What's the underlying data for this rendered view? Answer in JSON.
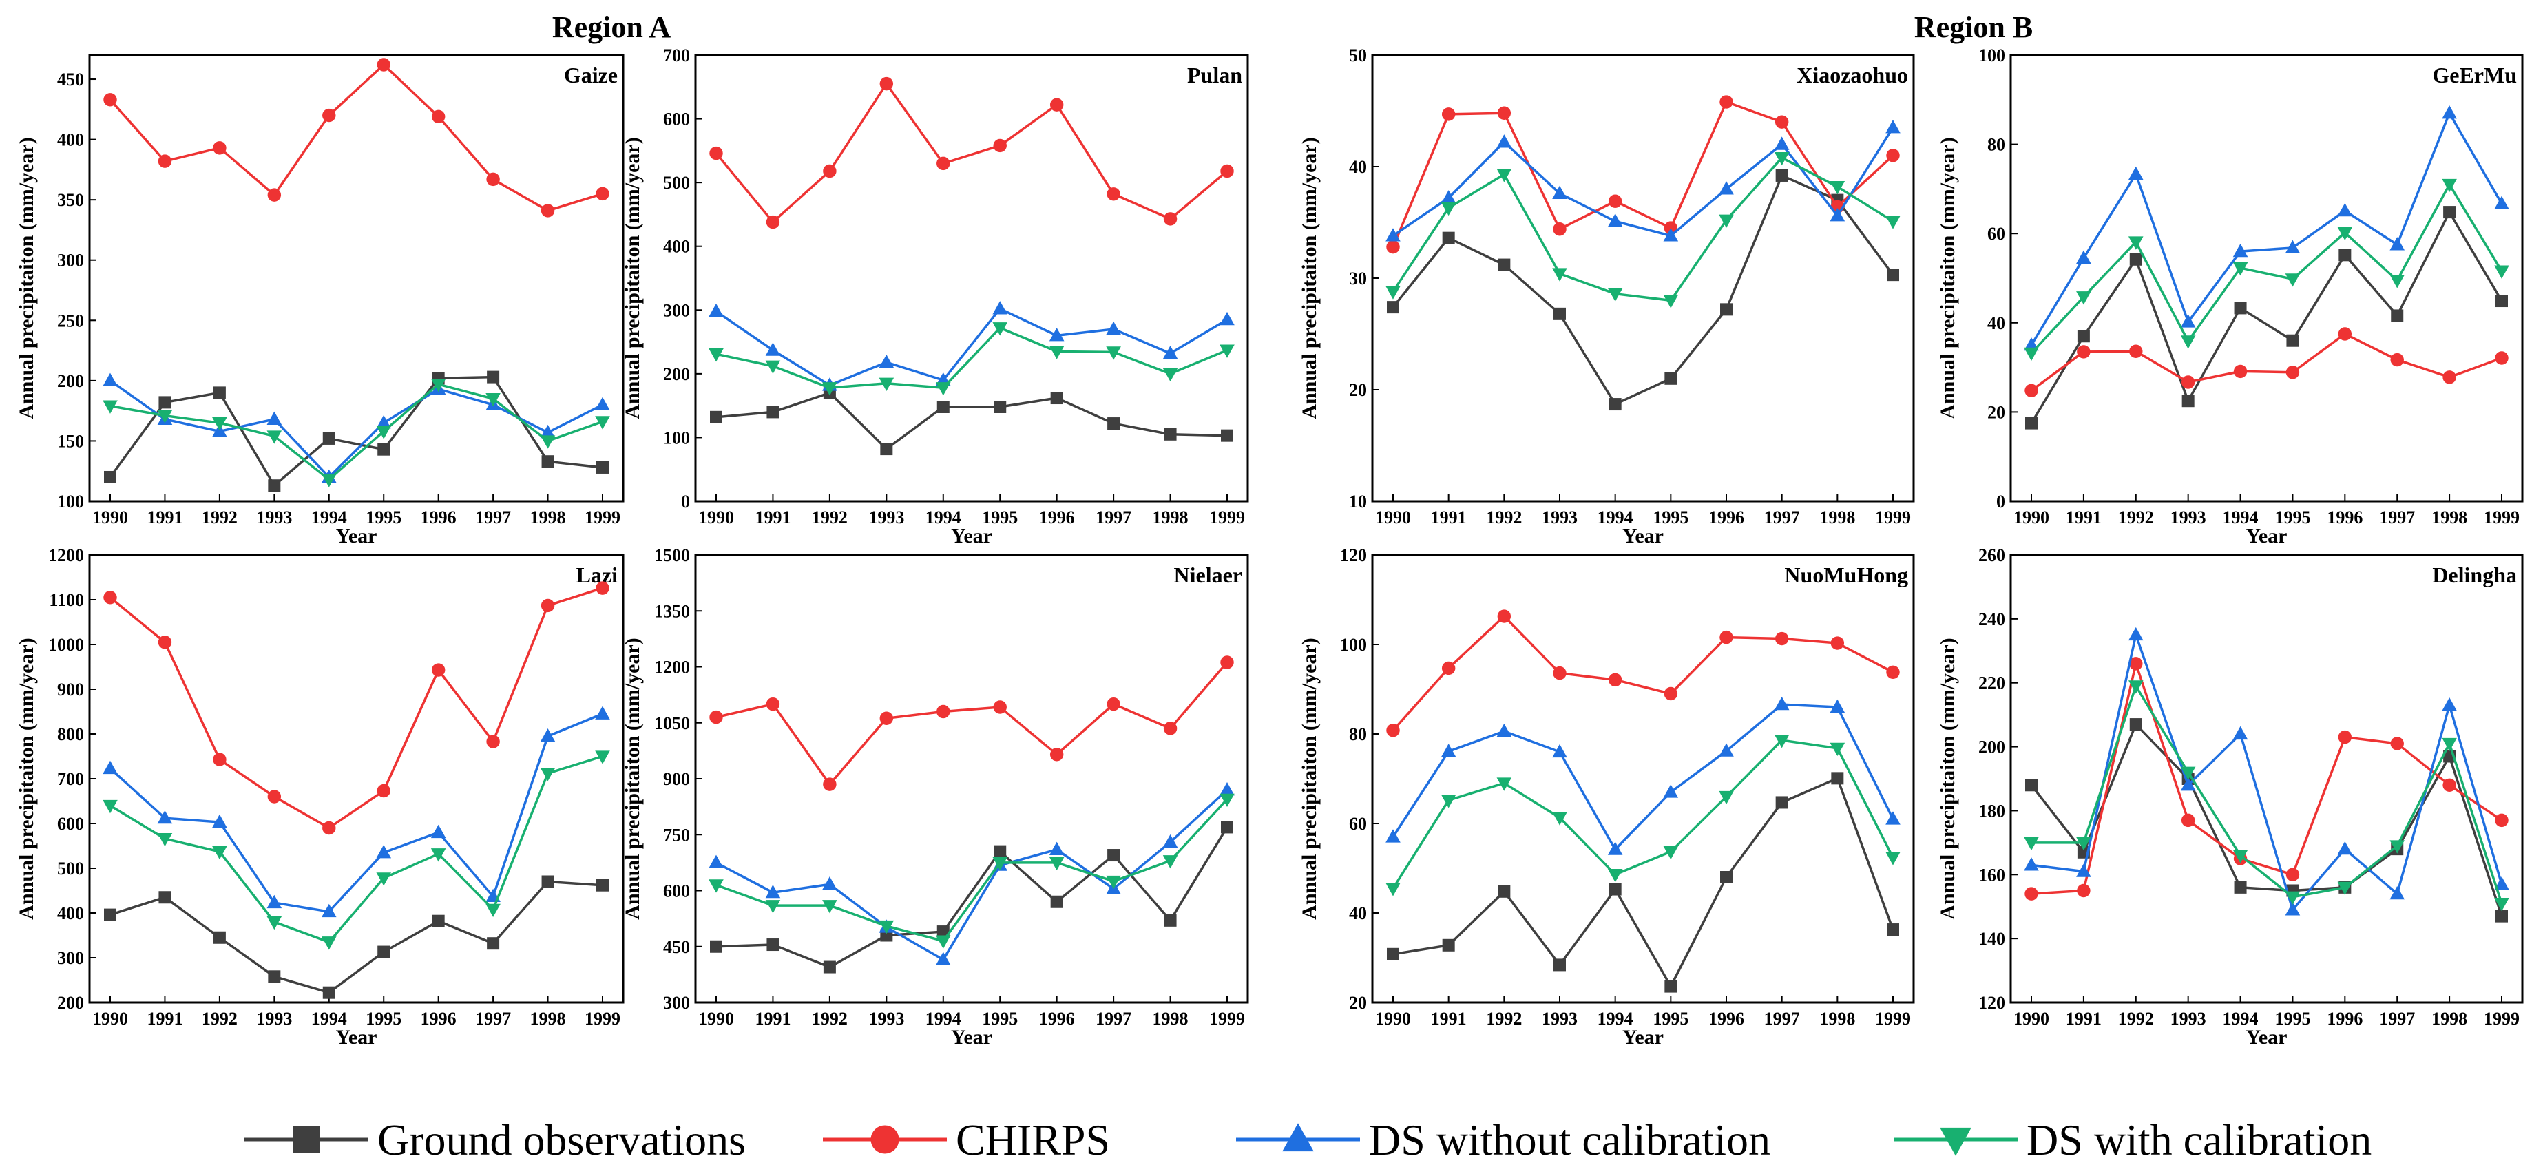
{
  "region_titles": [
    "Region A",
    "Region B"
  ],
  "legend": {
    "items": [
      {
        "label": "Ground observations",
        "marker": "square",
        "color": "#3f3f3f"
      },
      {
        "label": "CHIRPS",
        "marker": "circle",
        "color": "#ee3333"
      },
      {
        "label": "DS without calibration",
        "marker": "triangle-up",
        "color": "#1f6fe0"
      },
      {
        "label": "DS with calibration",
        "marker": "triangle-down",
        "color": "#18b070"
      }
    ]
  },
  "chart_data": [
    {
      "type": "line",
      "title": "Gaize",
      "region": "Region A",
      "xlabel": "Year",
      "ylabel": "Annual precipitaiton (mm/year)",
      "categories": [
        "1990",
        "1991",
        "1992",
        "1993",
        "1994",
        "1995",
        "1996",
        "1997",
        "1998",
        "1999"
      ],
      "ylim": [
        100,
        470
      ],
      "yticks": [
        100,
        150,
        200,
        250,
        300,
        350,
        400,
        450
      ],
      "series": [
        {
          "name": "Ground observations",
          "values": [
            120,
            182,
            190,
            113,
            152,
            143,
            202,
            203,
            133,
            128
          ]
        },
        {
          "name": "CHIRPS",
          "values": [
            433,
            382,
            393,
            354,
            420,
            462,
            419,
            367,
            341,
            355
          ]
        },
        {
          "name": "DS without calibration",
          "values": [
            200,
            168,
            158,
            168,
            120,
            165,
            193,
            180,
            157,
            180
          ]
        },
        {
          "name": "DS with calibration",
          "values": [
            179,
            171,
            165,
            154,
            118,
            158,
            197,
            185,
            150,
            166
          ]
        }
      ]
    },
    {
      "type": "line",
      "title": "Pulan",
      "region": "Region A",
      "xlabel": "Year",
      "ylabel": "Annual precipitaiton (mm/year)",
      "categories": [
        "1990",
        "1991",
        "1992",
        "1993",
        "1994",
        "1995",
        "1996",
        "1997",
        "1998",
        "1999"
      ],
      "ylim": [
        0,
        700
      ],
      "yticks": [
        0,
        100,
        200,
        300,
        400,
        500,
        600,
        700
      ],
      "series": [
        {
          "name": "Ground observations",
          "values": [
            132,
            140,
            170,
            82,
            148,
            148,
            162,
            122,
            105,
            103
          ]
        },
        {
          "name": "CHIRPS",
          "values": [
            546,
            438,
            518,
            655,
            530,
            558,
            622,
            482,
            443,
            518
          ]
        },
        {
          "name": "DS without calibration",
          "values": [
            298,
            237,
            182,
            218,
            190,
            302,
            260,
            270,
            232,
            285
          ]
        },
        {
          "name": "DS with calibration",
          "values": [
            231,
            212,
            178,
            185,
            178,
            272,
            235,
            234,
            200,
            237
          ]
        }
      ]
    },
    {
      "type": "line",
      "title": "Xiaozaohuo",
      "region": "Region B",
      "xlabel": "Year",
      "ylabel": "Annual precipitaiton (mm/year)",
      "categories": [
        "1990",
        "1991",
        "1992",
        "1993",
        "1994",
        "1995",
        "1996",
        "1997",
        "1998",
        "1999"
      ],
      "ylim": [
        10,
        50
      ],
      "yticks": [
        10,
        20,
        30,
        40,
        50
      ],
      "series": [
        {
          "name": "Ground observations",
          "values": [
            27.4,
            33.6,
            31.2,
            26.8,
            18.7,
            21.0,
            27.2,
            39.2,
            37.0,
            30.3
          ]
        },
        {
          "name": "CHIRPS",
          "values": [
            32.8,
            44.7,
            44.8,
            34.4,
            36.9,
            34.5,
            45.8,
            44.0,
            36.4,
            41.0
          ]
        },
        {
          "name": "DS without calibration",
          "values": [
            33.8,
            37.2,
            42.2,
            37.6,
            35.1,
            33.8,
            38.0,
            42.0,
            35.6,
            43.5
          ]
        },
        {
          "name": "DS with calibration",
          "values": [
            28.8,
            36.3,
            39.3,
            30.4,
            28.6,
            28.0,
            35.2,
            40.8,
            38.2,
            35.1
          ]
        }
      ]
    },
    {
      "type": "line",
      "title": "GeErMu",
      "region": "Region B",
      "xlabel": "Year",
      "ylabel": "Annual precipitaiton (mm/year)",
      "categories": [
        "1990",
        "1991",
        "1992",
        "1993",
        "1994",
        "1995",
        "1996",
        "1997",
        "1998",
        "1999"
      ],
      "ylim": [
        0,
        100
      ],
      "yticks": [
        0,
        20,
        40,
        60,
        80,
        100
      ],
      "series": [
        {
          "name": "Ground observations",
          "values": [
            17.5,
            37.0,
            54.2,
            22.5,
            43.3,
            36.0,
            55.2,
            41.6,
            64.8,
            44.9
          ]
        },
        {
          "name": "CHIRPS",
          "values": [
            24.8,
            33.5,
            33.6,
            26.7,
            29.1,
            28.9,
            37.5,
            31.7,
            27.8,
            32.1
          ]
        },
        {
          "name": "DS without calibration",
          "values": [
            35.0,
            54.5,
            73.3,
            40.2,
            56.0,
            56.8,
            65.1,
            57.5,
            87.0,
            66.7
          ]
        },
        {
          "name": "DS with calibration",
          "values": [
            33.2,
            45.8,
            58.1,
            35.9,
            52.3,
            49.8,
            60.2,
            49.5,
            71.0,
            51.6
          ]
        }
      ]
    },
    {
      "type": "line",
      "title": "Lazi",
      "region": "Region A",
      "xlabel": "Year",
      "ylabel": "Annual precipitaiton (mm/year)",
      "categories": [
        "1990",
        "1991",
        "1992",
        "1993",
        "1994",
        "1995",
        "1996",
        "1997",
        "1998",
        "1999"
      ],
      "ylim": [
        200,
        1200
      ],
      "yticks": [
        200,
        300,
        400,
        500,
        600,
        700,
        800,
        900,
        1000,
        1100,
        1200
      ],
      "series": [
        {
          "name": "Ground observations",
          "values": [
            396,
            435,
            345,
            258,
            222,
            313,
            382,
            332,
            470,
            462
          ]
        },
        {
          "name": "CHIRPS",
          "values": [
            1105,
            1005,
            743,
            660,
            590,
            673,
            943,
            783,
            1087,
            1126
          ]
        },
        {
          "name": "DS without calibration",
          "values": [
            723,
            612,
            603,
            423,
            403,
            535,
            580,
            437,
            795,
            845
          ]
        },
        {
          "name": "DS with calibration",
          "values": [
            640,
            566,
            537,
            380,
            335,
            478,
            532,
            408,
            712,
            750
          ]
        }
      ]
    },
    {
      "type": "line",
      "title": "Nielaer",
      "region": "Region A",
      "xlabel": "Year",
      "ylabel": "Annual precipitaiton (mm/year)",
      "categories": [
        "1990",
        "1991",
        "1992",
        "1993",
        "1994",
        "1995",
        "1996",
        "1997",
        "1998",
        "1999"
      ],
      "ylim": [
        300,
        1500
      ],
      "yticks": [
        300,
        450,
        600,
        750,
        900,
        1050,
        1200,
        1350,
        1500
      ],
      "series": [
        {
          "name": "Ground observations",
          "values": [
            450,
            455,
            395,
            480,
            490,
            705,
            570,
            695,
            520,
            770
          ]
        },
        {
          "name": "CHIRPS",
          "values": [
            1065,
            1100,
            885,
            1062,
            1080,
            1092,
            965,
            1100,
            1035,
            1212
          ]
        },
        {
          "name": "DS without calibration",
          "values": [
            675,
            595,
            617,
            502,
            415,
            668,
            710,
            605,
            730,
            870
          ]
        },
        {
          "name": "DS with calibration",
          "values": [
            615,
            560,
            560,
            505,
            465,
            675,
            675,
            625,
            680,
            845
          ]
        }
      ]
    },
    {
      "type": "line",
      "title": "NuoMuHong",
      "region": "Region B",
      "xlabel": "Year",
      "ylabel": "Annual precipitaiton (mm/year)",
      "categories": [
        "1990",
        "1991",
        "1992",
        "1993",
        "1994",
        "1995",
        "1996",
        "1997",
        "1998",
        "1999"
      ],
      "ylim": [
        20,
        120
      ],
      "yticks": [
        20,
        40,
        60,
        80,
        100,
        120
      ],
      "series": [
        {
          "name": "Ground observations",
          "values": [
            30.8,
            32.8,
            44.8,
            28.4,
            45.3,
            23.6,
            48.0,
            64.7,
            70.1,
            36.3
          ]
        },
        {
          "name": "CHIRPS",
          "values": [
            80.8,
            94.7,
            106.3,
            93.6,
            92.1,
            89.0,
            101.6,
            101.3,
            100.3,
            93.8
          ]
        },
        {
          "name": "DS without calibration",
          "values": [
            57.0,
            76.1,
            80.6,
            76.0,
            54.2,
            67.0,
            76.2,
            86.6,
            86.0,
            61.0
          ]
        },
        {
          "name": "DS with calibration",
          "values": [
            45.5,
            65.2,
            69.0,
            61.3,
            48.6,
            53.7,
            66.0,
            78.6,
            76.8,
            52.4
          ]
        }
      ]
    },
    {
      "type": "line",
      "title": "Delingha",
      "region": "Region B",
      "xlabel": "Year",
      "ylabel": "Annual precipitaiton (mm/year)",
      "categories": [
        "1990",
        "1991",
        "1992",
        "1993",
        "1994",
        "1995",
        "1996",
        "1997",
        "1998",
        "1999"
      ],
      "ylim": [
        120,
        260
      ],
      "yticks": [
        120,
        140,
        160,
        180,
        200,
        220,
        240,
        260
      ],
      "series": [
        {
          "name": "Ground observations",
          "values": [
            188,
            167,
            207,
            190,
            156,
            155,
            156,
            168,
            197,
            147
          ]
        },
        {
          "name": "CHIRPS",
          "values": [
            154,
            155,
            226,
            177,
            165,
            160,
            203,
            201,
            188,
            177
          ]
        },
        {
          "name": "DS without calibration",
          "values": [
            163,
            161,
            235,
            188,
            204,
            149,
            168,
            154,
            213,
            157
          ]
        },
        {
          "name": "DS with calibration",
          "values": [
            170,
            170,
            219,
            192,
            166,
            153,
            156,
            169,
            201,
            151
          ]
        }
      ]
    }
  ]
}
